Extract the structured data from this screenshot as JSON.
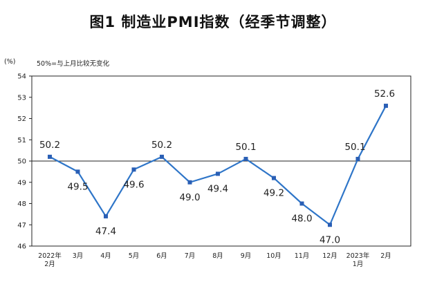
{
  "chart_data": {
    "type": "line",
    "title": "图1 制造业PMI指数（经季节调整）",
    "y_unit": "(%)",
    "note": "50%=与上月比较无变化",
    "categories": [
      [
        "2022年",
        "2月"
      ],
      [
        "3月"
      ],
      [
        "4月"
      ],
      [
        "5月"
      ],
      [
        "6月"
      ],
      [
        "7月"
      ],
      [
        "8月"
      ],
      [
        "9月"
      ],
      [
        "10月"
      ],
      [
        "11月"
      ],
      [
        "12月"
      ],
      [
        "2023年",
        "1月"
      ],
      [
        "2月"
      ]
    ],
    "values": [
      50.2,
      49.5,
      47.4,
      49.6,
      50.2,
      49.0,
      49.4,
      50.1,
      49.2,
      48.0,
      47.0,
      50.1,
      52.6
    ],
    "data_labels": [
      "50.2",
      "49.5",
      "47.4",
      "49.6",
      "50.2",
      "49.0",
      "49.4",
      "50.1",
      "49.2",
      "48.0",
      "47.0",
      "50.1",
      "52.6"
    ],
    "ylim": [
      46,
      54
    ],
    "yticks": [
      46,
      47,
      48,
      49,
      50,
      51,
      52,
      53,
      54
    ],
    "reference_line": 50,
    "grid": false,
    "legend": "none",
    "colors": {
      "series": "#2E75C8",
      "marker": "#2A5FB5",
      "axis": "#222222",
      "text": "#222222"
    }
  }
}
